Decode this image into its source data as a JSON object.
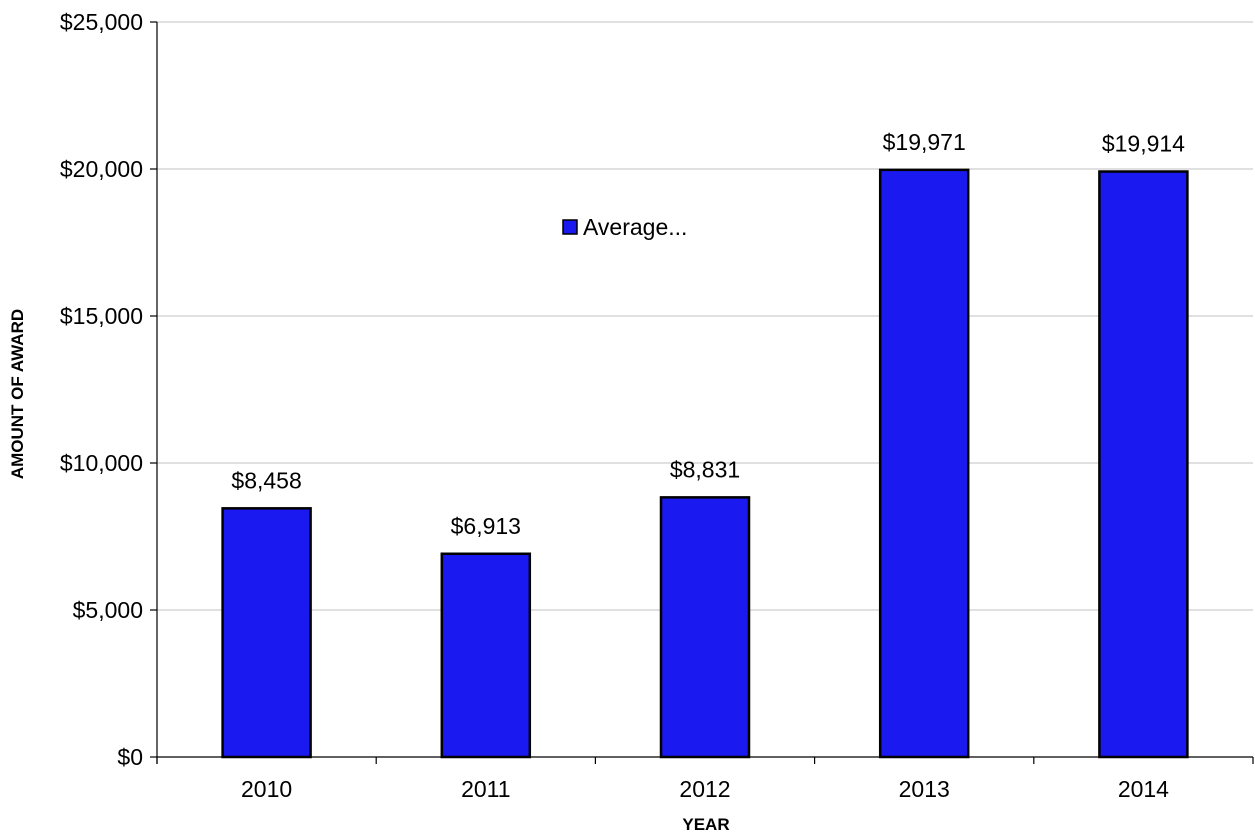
{
  "chart_data": {
    "type": "bar",
    "title": "",
    "xlabel": "YEAR",
    "ylabel": "AMOUNT OF AWARD",
    "categories": [
      "2010",
      "2011",
      "2012",
      "2013",
      "2014"
    ],
    "series": [
      {
        "name": "Average...",
        "values": [
          8458,
          6913,
          8831,
          19971,
          19914
        ],
        "labels": [
          "$8,458",
          "$6,913",
          "$8,831",
          "$19,971",
          "$19,914"
        ],
        "color": "#1a1af0"
      }
    ],
    "ylim": [
      0,
      25000
    ],
    "yticks": [
      0,
      5000,
      10000,
      15000,
      20000,
      25000
    ],
    "ytick_labels": [
      "$0",
      "$5,000",
      "$10,000",
      "$15,000",
      "$20,000",
      "$25,000"
    ],
    "grid": true,
    "grid_color": "#c0c0c0",
    "bar_edge_color": "#000000",
    "legend": "inside-top-center"
  }
}
